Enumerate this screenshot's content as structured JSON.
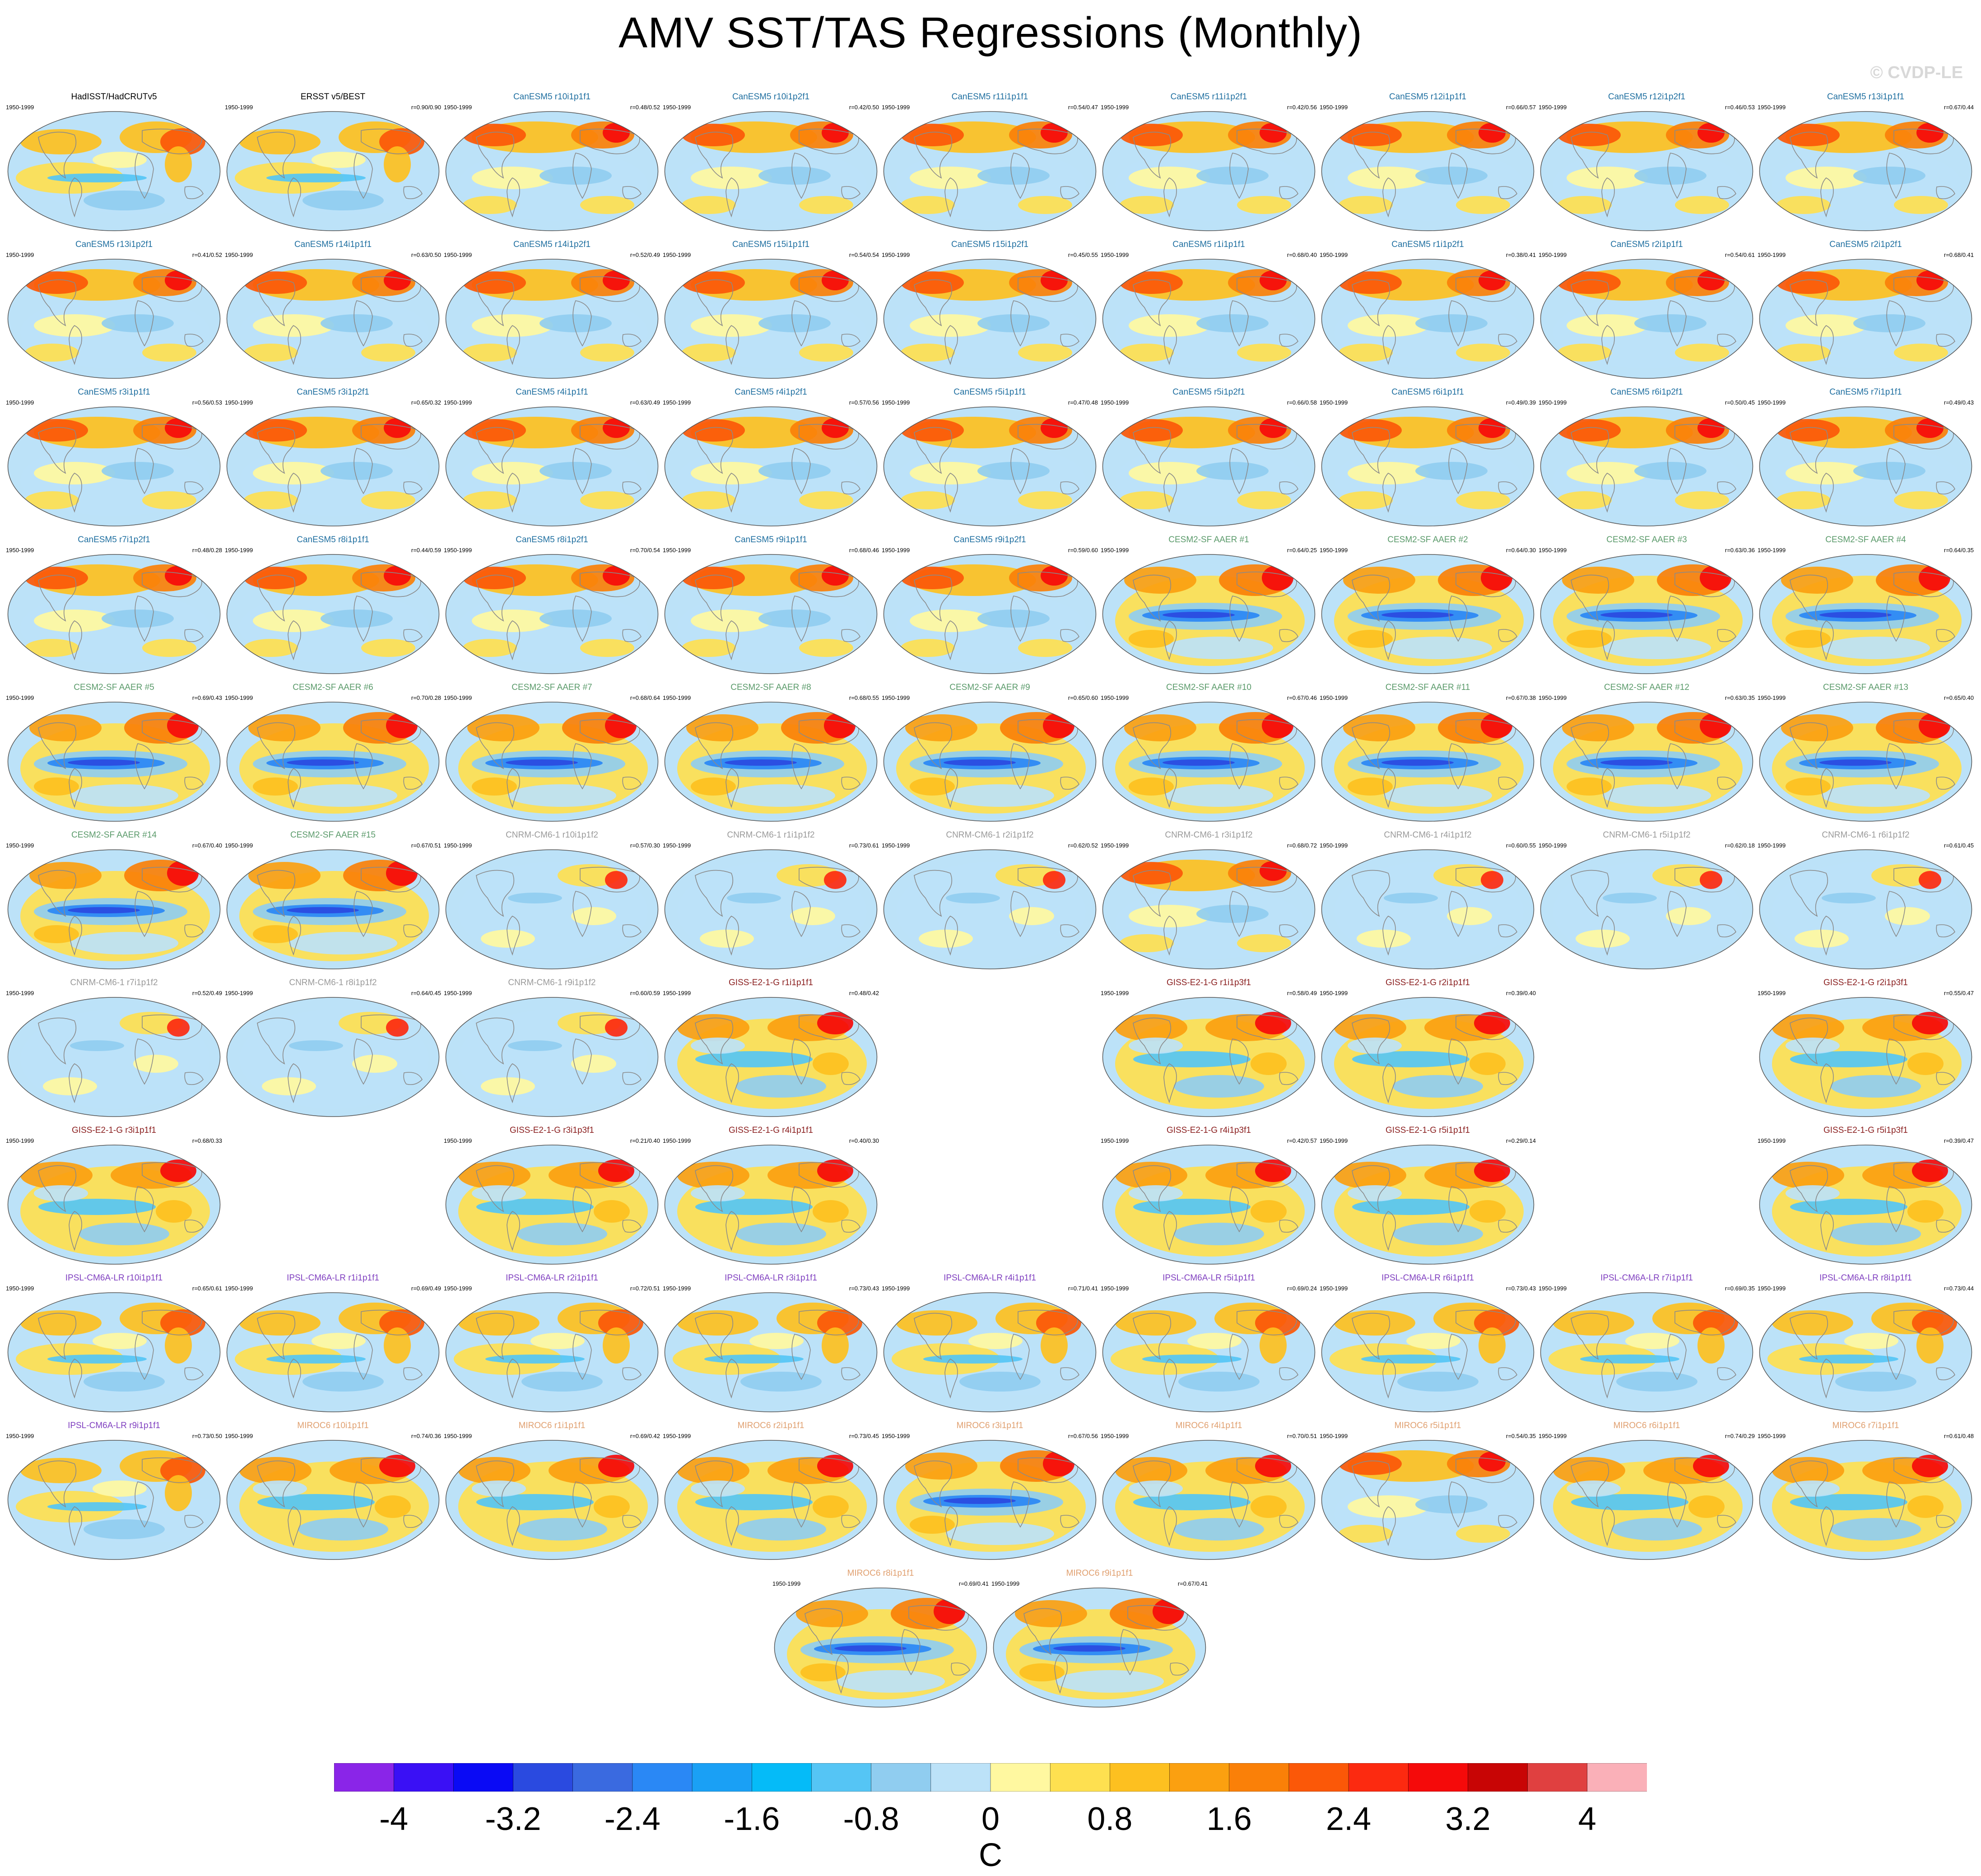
{
  "title": "AMV SST/TAS Regressions (Monthly)",
  "watermark": "© CVDP-LE",
  "colors": {
    "HadISST": "#000000",
    "CanESM5": "#1f6fa0",
    "CESM2": "#5a9a6a",
    "CNRM": "#9a9a9a",
    "GISS": "#8b2020",
    "IPSL": "#8040c0",
    "MIROC": "#e0a070"
  },
  "chart_data": {
    "type": "heatmap",
    "title": "AMV SST/TAS Regressions (Monthly)",
    "units": "C",
    "colorbar": {
      "ticks": [
        "-4",
        "-3.2",
        "-2.4",
        "-1.6",
        "-0.8",
        "0",
        "0.8",
        "1.6",
        "2.4",
        "3.2",
        "4"
      ],
      "range": [
        -4.4,
        4.4
      ],
      "colors": [
        "#8a25e8",
        "#3a10f5",
        "#0a0af5",
        "#2a4ae0",
        "#3a6ae0",
        "#2a88f5",
        "#1aa0f5",
        "#05bbf8",
        "#55c5f5",
        "#90cdf0",
        "#bce2f8",
        "#fff8a0",
        "#fee050",
        "#fdc020",
        "#fba010",
        "#fa8008",
        "#fb5808",
        "#fc2a10",
        "#f50a0a",
        "#c80505",
        "#e04040",
        "#fab0b8"
      ]
    },
    "panels": [
      {
        "row": 0,
        "col": 0,
        "title": "HadISST/HadCRUTv5",
        "group": "HadISST",
        "period": "1950-1999",
        "corr": "",
        "style": "a"
      },
      {
        "row": 0,
        "col": 1,
        "title": "ERSST v5/BEST",
        "group": "HadISST",
        "period": "1950-1999",
        "corr": "r=0.90/0.90",
        "style": "a"
      },
      {
        "row": 0,
        "col": 2,
        "title": "CanESM5 r10i1p1f1",
        "group": "CanESM5",
        "period": "1950-1999",
        "corr": "r=0.48/0.52",
        "style": "c"
      },
      {
        "row": 0,
        "col": 3,
        "title": "CanESM5 r10i1p2f1",
        "group": "CanESM5",
        "period": "1950-1999",
        "corr": "r=0.42/0.50",
        "style": "c"
      },
      {
        "row": 0,
        "col": 4,
        "title": "CanESM5 r11i1p1f1",
        "group": "CanESM5",
        "period": "1950-1999",
        "corr": "r=0.54/0.47",
        "style": "c"
      },
      {
        "row": 0,
        "col": 5,
        "title": "CanESM5 r11i1p2f1",
        "group": "CanESM5",
        "period": "1950-1999",
        "corr": "r=0.42/0.56",
        "style": "c"
      },
      {
        "row": 0,
        "col": 6,
        "title": "CanESM5 r12i1p1f1",
        "group": "CanESM5",
        "period": "1950-1999",
        "corr": "r=0.66/0.57",
        "style": "c"
      },
      {
        "row": 0,
        "col": 7,
        "title": "CanESM5 r12i1p2f1",
        "group": "CanESM5",
        "period": "1950-1999",
        "corr": "r=0.46/0.53",
        "style": "c"
      },
      {
        "row": 0,
        "col": 8,
        "title": "CanESM5 r13i1p1f1",
        "group": "CanESM5",
        "period": "1950-1999",
        "corr": "r=0.67/0.44",
        "style": "c"
      },
      {
        "row": 1,
        "col": 0,
        "title": "CanESM5 r13i1p2f1",
        "group": "CanESM5",
        "period": "1950-1999",
        "corr": "r=0.41/0.52",
        "style": "c"
      },
      {
        "row": 1,
        "col": 1,
        "title": "CanESM5 r14i1p1f1",
        "group": "CanESM5",
        "period": "1950-1999",
        "corr": "r=0.63/0.50",
        "style": "c"
      },
      {
        "row": 1,
        "col": 2,
        "title": "CanESM5 r14i1p2f1",
        "group": "CanESM5",
        "period": "1950-1999",
        "corr": "r=0.52/0.49",
        "style": "c"
      },
      {
        "row": 1,
        "col": 3,
        "title": "CanESM5 r15i1p1f1",
        "group": "CanESM5",
        "period": "1950-1999",
        "corr": "r=0.54/0.54",
        "style": "c"
      },
      {
        "row": 1,
        "col": 4,
        "title": "CanESM5 r15i1p2f1",
        "group": "CanESM5",
        "period": "1950-1999",
        "corr": "r=0.45/0.55",
        "style": "c"
      },
      {
        "row": 1,
        "col": 5,
        "title": "CanESM5 r1i1p1f1",
        "group": "CanESM5",
        "period": "1950-1999",
        "corr": "r=0.68/0.40",
        "style": "c"
      },
      {
        "row": 1,
        "col": 6,
        "title": "CanESM5 r1i1p2f1",
        "group": "CanESM5",
        "period": "1950-1999",
        "corr": "r=0.38/0.41",
        "style": "c"
      },
      {
        "row": 1,
        "col": 7,
        "title": "CanESM5 r2i1p1f1",
        "group": "CanESM5",
        "period": "1950-1999",
        "corr": "r=0.54/0.61",
        "style": "c"
      },
      {
        "row": 1,
        "col": 8,
        "title": "CanESM5 r2i1p2f1",
        "group": "CanESM5",
        "period": "1950-1999",
        "corr": "r=0.68/0.41",
        "style": "c"
      },
      {
        "row": 2,
        "col": 0,
        "title": "CanESM5 r3i1p1f1",
        "group": "CanESM5",
        "period": "1950-1999",
        "corr": "r=0.56/0.53",
        "style": "c"
      },
      {
        "row": 2,
        "col": 1,
        "title": "CanESM5 r3i1p2f1",
        "group": "CanESM5",
        "period": "1950-1999",
        "corr": "r=0.65/0.32",
        "style": "c"
      },
      {
        "row": 2,
        "col": 2,
        "title": "CanESM5 r4i1p1f1",
        "group": "CanESM5",
        "period": "1950-1999",
        "corr": "r=0.63/0.49",
        "style": "c"
      },
      {
        "row": 2,
        "col": 3,
        "title": "CanESM5 r4i1p2f1",
        "group": "CanESM5",
        "period": "1950-1999",
        "corr": "r=0.57/0.56",
        "style": "c"
      },
      {
        "row": 2,
        "col": 4,
        "title": "CanESM5 r5i1p1f1",
        "group": "CanESM5",
        "period": "1950-1999",
        "corr": "r=0.47/0.48",
        "style": "c"
      },
      {
        "row": 2,
        "col": 5,
        "title": "CanESM5 r5i1p2f1",
        "group": "CanESM5",
        "period": "1950-1999",
        "corr": "r=0.66/0.58",
        "style": "c"
      },
      {
        "row": 2,
        "col": 6,
        "title": "CanESM5 r6i1p1f1",
        "group": "CanESM5",
        "period": "1950-1999",
        "corr": "r=0.49/0.39",
        "style": "c"
      },
      {
        "row": 2,
        "col": 7,
        "title": "CanESM5 r6i1p2f1",
        "group": "CanESM5",
        "period": "1950-1999",
        "corr": "r=0.50/0.45",
        "style": "c"
      },
      {
        "row": 2,
        "col": 8,
        "title": "CanESM5 r7i1p1f1",
        "group": "CanESM5",
        "period": "1950-1999",
        "corr": "r=0.49/0.43",
        "style": "c"
      },
      {
        "row": 3,
        "col": 0,
        "title": "CanESM5 r7i1p2f1",
        "group": "CanESM5",
        "period": "1950-1999",
        "corr": "r=0.48/0.28",
        "style": "c"
      },
      {
        "row": 3,
        "col": 1,
        "title": "CanESM5 r8i1p1f1",
        "group": "CanESM5",
        "period": "1950-1999",
        "corr": "r=0.44/0.59",
        "style": "c"
      },
      {
        "row": 3,
        "col": 2,
        "title": "CanESM5 r8i1p2f1",
        "group": "CanESM5",
        "period": "1950-1999",
        "corr": "r=0.70/0.54",
        "style": "c"
      },
      {
        "row": 3,
        "col": 3,
        "title": "CanESM5 r9i1p1f1",
        "group": "CanESM5",
        "period": "1950-1999",
        "corr": "r=0.68/0.46",
        "style": "c"
      },
      {
        "row": 3,
        "col": 4,
        "title": "CanESM5 r9i1p2f1",
        "group": "CanESM5",
        "period": "1950-1999",
        "corr": "r=0.59/0.60",
        "style": "c"
      },
      {
        "row": 3,
        "col": 5,
        "title": "CESM2-SF AAER #1",
        "group": "CESM2",
        "period": "1950-1999",
        "corr": "r=0.64/0.25",
        "style": "e"
      },
      {
        "row": 3,
        "col": 6,
        "title": "CESM2-SF AAER #2",
        "group": "CESM2",
        "period": "1950-1999",
        "corr": "r=0.64/0.30",
        "style": "e"
      },
      {
        "row": 3,
        "col": 7,
        "title": "CESM2-SF AAER #3",
        "group": "CESM2",
        "period": "1950-1999",
        "corr": "r=0.63/0.36",
        "style": "e"
      },
      {
        "row": 3,
        "col": 8,
        "title": "CESM2-SF AAER #4",
        "group": "CESM2",
        "period": "1950-1999",
        "corr": "r=0.64/0.35",
        "style": "e"
      },
      {
        "row": 4,
        "col": 0,
        "title": "CESM2-SF AAER #5",
        "group": "CESM2",
        "period": "1950-1999",
        "corr": "r=0.69/0.43",
        "style": "e"
      },
      {
        "row": 4,
        "col": 1,
        "title": "CESM2-SF AAER #6",
        "group": "CESM2",
        "period": "1950-1999",
        "corr": "r=0.70/0.28",
        "style": "e"
      },
      {
        "row": 4,
        "col": 2,
        "title": "CESM2-SF AAER #7",
        "group": "CESM2",
        "period": "1950-1999",
        "corr": "r=0.68/0.64",
        "style": "e"
      },
      {
        "row": 4,
        "col": 3,
        "title": "CESM2-SF AAER #8",
        "group": "CESM2",
        "period": "1950-1999",
        "corr": "r=0.68/0.55",
        "style": "e"
      },
      {
        "row": 4,
        "col": 4,
        "title": "CESM2-SF AAER #9",
        "group": "CESM2",
        "period": "1950-1999",
        "corr": "r=0.65/0.60",
        "style": "e"
      },
      {
        "row": 4,
        "col": 5,
        "title": "CESM2-SF AAER #10",
        "group": "CESM2",
        "period": "1950-1999",
        "corr": "r=0.67/0.46",
        "style": "e"
      },
      {
        "row": 4,
        "col": 6,
        "title": "CESM2-SF AAER #11",
        "group": "CESM2",
        "period": "1950-1999",
        "corr": "r=0.67/0.38",
        "style": "e"
      },
      {
        "row": 4,
        "col": 7,
        "title": "CESM2-SF AAER #12",
        "group": "CESM2",
        "period": "1950-1999",
        "corr": "r=0.63/0.35",
        "style": "e"
      },
      {
        "row": 4,
        "col": 8,
        "title": "CESM2-SF AAER #13",
        "group": "CESM2",
        "period": "1950-1999",
        "corr": "r=0.65/0.40",
        "style": "e"
      },
      {
        "row": 5,
        "col": 0,
        "title": "CESM2-SF AAER #14",
        "group": "CESM2",
        "period": "1950-1999",
        "corr": "r=0.67/0.40",
        "style": "e"
      },
      {
        "row": 5,
        "col": 1,
        "title": "CESM2-SF AAER #15",
        "group": "CESM2",
        "period": "1950-1999",
        "corr": "r=0.67/0.51",
        "style": "e"
      },
      {
        "row": 5,
        "col": 2,
        "title": "CNRM-CM6-1 r10i1p1f2",
        "group": "CNRM",
        "period": "1950-1999",
        "corr": "r=0.57/0.30",
        "style": "b"
      },
      {
        "row": 5,
        "col": 3,
        "title": "CNRM-CM6-1 r1i1p1f2",
        "group": "CNRM",
        "period": "1950-1999",
        "corr": "r=0.73/0.61",
        "style": "b"
      },
      {
        "row": 5,
        "col": 4,
        "title": "CNRM-CM6-1 r2i1p1f2",
        "group": "CNRM",
        "period": "1950-1999",
        "corr": "r=0.62/0.52",
        "style": "b"
      },
      {
        "row": 5,
        "col": 5,
        "title": "CNRM-CM6-1 r3i1p1f2",
        "group": "CNRM",
        "period": "1950-1999",
        "corr": "r=0.68/0.72",
        "style": "c"
      },
      {
        "row": 5,
        "col": 6,
        "title": "CNRM-CM6-1 r4i1p1f2",
        "group": "CNRM",
        "period": "1950-1999",
        "corr": "r=0.60/0.55",
        "style": "b"
      },
      {
        "row": 5,
        "col": 7,
        "title": "CNRM-CM6-1 r5i1p1f2",
        "group": "CNRM",
        "period": "1950-1999",
        "corr": "r=0.62/0.18",
        "style": "b"
      },
      {
        "row": 5,
        "col": 8,
        "title": "CNRM-CM6-1 r6i1p1f2",
        "group": "CNRM",
        "period": "1950-1999",
        "corr": "r=0.61/0.45",
        "style": "b"
      },
      {
        "row": 6,
        "col": 0,
        "title": "CNRM-CM6-1 r7i1p1f2",
        "group": "CNRM",
        "period": "1950-1999",
        "corr": "r=0.52/0.49",
        "style": "b"
      },
      {
        "row": 6,
        "col": 1,
        "title": "CNRM-CM6-1 r8i1p1f2",
        "group": "CNRM",
        "period": "1950-1999",
        "corr": "r=0.64/0.45",
        "style": "b"
      },
      {
        "row": 6,
        "col": 2,
        "title": "CNRM-CM6-1 r9i1p1f2",
        "group": "CNRM",
        "period": "1950-1999",
        "corr": "r=0.60/0.59",
        "style": "b"
      },
      {
        "row": 6,
        "col": 3,
        "title": "GISS-E2-1-G r1i1p1f1",
        "group": "GISS",
        "period": "1950-1999",
        "corr": "r=0.48/0.42",
        "style": "d"
      },
      {
        "row": 6,
        "col": 5,
        "title": "GISS-E2-1-G r1i1p3f1",
        "group": "GISS",
        "period": "1950-1999",
        "corr": "r=0.58/0.49",
        "style": "d"
      },
      {
        "row": 6,
        "col": 6,
        "title": "GISS-E2-1-G r2i1p1f1",
        "group": "GISS",
        "period": "1950-1999",
        "corr": "r=0.39/0.40",
        "style": "d"
      },
      {
        "row": 6,
        "col": 8,
        "title": "GISS-E2-1-G r2i1p3f1",
        "group": "GISS",
        "period": "1950-1999",
        "corr": "r=0.55/0.47",
        "style": "d"
      },
      {
        "row": 7,
        "col": 0,
        "title": "GISS-E2-1-G r3i1p1f1",
        "group": "GISS",
        "period": "1950-1999",
        "corr": "r=0.68/0.33",
        "style": "d"
      },
      {
        "row": 7,
        "col": 2,
        "title": "GISS-E2-1-G r3i1p3f1",
        "group": "GISS",
        "period": "1950-1999",
        "corr": "r=0.21/0.40",
        "style": "d"
      },
      {
        "row": 7,
        "col": 3,
        "title": "GISS-E2-1-G r4i1p1f1",
        "group": "GISS",
        "period": "1950-1999",
        "corr": "r=0.40/0.30",
        "style": "d"
      },
      {
        "row": 7,
        "col": 5,
        "title": "GISS-E2-1-G r4i1p3f1",
        "group": "GISS",
        "period": "1950-1999",
        "corr": "r=0.42/0.57",
        "style": "d"
      },
      {
        "row": 7,
        "col": 6,
        "title": "GISS-E2-1-G r5i1p1f1",
        "group": "GISS",
        "period": "1950-1999",
        "corr": "r=0.29/0.14",
        "style": "d"
      },
      {
        "row": 7,
        "col": 8,
        "title": "GISS-E2-1-G r5i1p3f1",
        "group": "GISS",
        "period": "1950-1999",
        "corr": "r=0.39/0.47",
        "style": "d"
      },
      {
        "row": 8,
        "col": 0,
        "title": "IPSL-CM6A-LR r10i1p1f1",
        "group": "IPSL",
        "period": "1950-1999",
        "corr": "r=0.65/0.61",
        "style": "a"
      },
      {
        "row": 8,
        "col": 1,
        "title": "IPSL-CM6A-LR r1i1p1f1",
        "group": "IPSL",
        "period": "1950-1999",
        "corr": "r=0.69/0.49",
        "style": "a"
      },
      {
        "row": 8,
        "col": 2,
        "title": "IPSL-CM6A-LR r2i1p1f1",
        "group": "IPSL",
        "period": "1950-1999",
        "corr": "r=0.72/0.51",
        "style": "a"
      },
      {
        "row": 8,
        "col": 3,
        "title": "IPSL-CM6A-LR r3i1p1f1",
        "group": "IPSL",
        "period": "1950-1999",
        "corr": "r=0.73/0.43",
        "style": "a"
      },
      {
        "row": 8,
        "col": 4,
        "title": "IPSL-CM6A-LR r4i1p1f1",
        "group": "IPSL",
        "period": "1950-1999",
        "corr": "r=0.71/0.41",
        "style": "a"
      },
      {
        "row": 8,
        "col": 5,
        "title": "IPSL-CM6A-LR r5i1p1f1",
        "group": "IPSL",
        "period": "1950-1999",
        "corr": "r=0.69/0.24",
        "style": "a"
      },
      {
        "row": 8,
        "col": 6,
        "title": "IPSL-CM6A-LR r6i1p1f1",
        "group": "IPSL",
        "period": "1950-1999",
        "corr": "r=0.73/0.43",
        "style": "a"
      },
      {
        "row": 8,
        "col": 7,
        "title": "IPSL-CM6A-LR r7i1p1f1",
        "group": "IPSL",
        "period": "1950-1999",
        "corr": "r=0.69/0.35",
        "style": "a"
      },
      {
        "row": 8,
        "col": 8,
        "title": "IPSL-CM6A-LR r8i1p1f1",
        "group": "IPSL",
        "period": "1950-1999",
        "corr": "r=0.73/0.44",
        "style": "a"
      },
      {
        "row": 9,
        "col": 0,
        "title": "IPSL-CM6A-LR r9i1p1f1",
        "group": "IPSL",
        "period": "1950-1999",
        "corr": "r=0.73/0.50",
        "style": "a"
      },
      {
        "row": 9,
        "col": 1,
        "title": "MIROC6 r10i1p1f1",
        "group": "MIROC",
        "period": "1950-1999",
        "corr": "r=0.74/0.36",
        "style": "d"
      },
      {
        "row": 9,
        "col": 2,
        "title": "MIROC6 r1i1p1f1",
        "group": "MIROC",
        "period": "1950-1999",
        "corr": "r=0.69/0.42",
        "style": "d"
      },
      {
        "row": 9,
        "col": 3,
        "title": "MIROC6 r2i1p1f1",
        "group": "MIROC",
        "period": "1950-1999",
        "corr": "r=0.73/0.45",
        "style": "d"
      },
      {
        "row": 9,
        "col": 4,
        "title": "MIROC6 r3i1p1f1",
        "group": "MIROC",
        "period": "1950-1999",
        "corr": "r=0.67/0.56",
        "style": "e"
      },
      {
        "row": 9,
        "col": 5,
        "title": "MIROC6 r4i1p1f1",
        "group": "MIROC",
        "period": "1950-1999",
        "corr": "r=0.70/0.51",
        "style": "d"
      },
      {
        "row": 9,
        "col": 6,
        "title": "MIROC6 r5i1p1f1",
        "group": "MIROC",
        "period": "1950-1999",
        "corr": "r=0.54/0.35",
        "style": "c"
      },
      {
        "row": 9,
        "col": 7,
        "title": "MIROC6 r6i1p1f1",
        "group": "MIROC",
        "period": "1950-1999",
        "corr": "r=0.74/0.29",
        "style": "d"
      },
      {
        "row": 9,
        "col": 8,
        "title": "MIROC6 r7i1p1f1",
        "group": "MIROC",
        "period": "1950-1999",
        "corr": "r=0.61/0.48",
        "style": "d"
      },
      {
        "row": 10,
        "col": 0,
        "title": "MIROC6 r8i1p1f1",
        "group": "MIROC",
        "period": "1950-1999",
        "corr": "r=0.69/0.41",
        "style": "e"
      },
      {
        "row": 10,
        "col": 1,
        "title": "MIROC6 r9i1p1f1",
        "group": "MIROC",
        "period": "1950-1999",
        "corr": "r=0.67/0.41",
        "style": "e"
      }
    ]
  }
}
